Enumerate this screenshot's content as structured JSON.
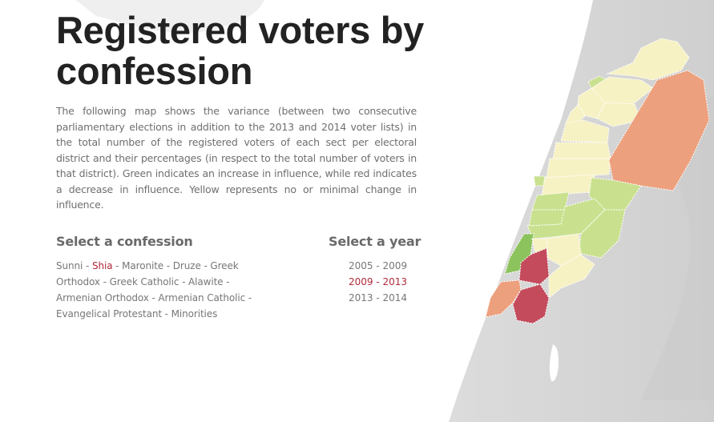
{
  "title": "Registered voters by confession",
  "intro": "The following map shows the variance (between two consecutive parliamentary elections in addition to the 2013 and 2014 voter lists) in the total number of the registered voters of each sect per electoral district and their percentages (in respect to the total number of voters in that district). Green indicates an increase in influence, while red indicates a decrease in influence. Yellow represents no or minimal change in influence.",
  "confession_heading": "Select a confession",
  "year_heading": "Select a year",
  "confessions": [
    "Sunni",
    "Shia",
    "Maronite",
    "Druze",
    "Greek Orthodox",
    "Greek Catholic",
    "Alawite",
    "Armenian Orthodox",
    "Armenian Catholic",
    "Evangelical Protestant",
    "Minorities"
  ],
  "selected_confession": "Shia",
  "years": [
    "2005 - 2009",
    "2009 - 2013",
    "2013 - 2014"
  ],
  "selected_year": "2009 - 2013",
  "legend_colors": {
    "increase_strong": "#8cc35d",
    "increase": "#c9e18f",
    "neutral": "#f7f2c4",
    "decrease": "#eda07d",
    "decrease_strong": "#c44b5c"
  }
}
